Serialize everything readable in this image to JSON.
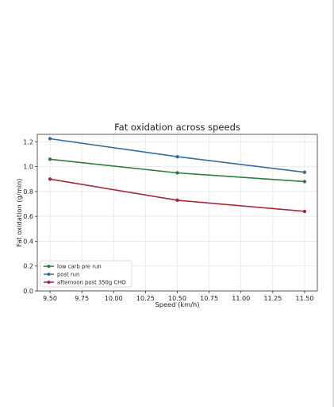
{
  "chart_data": {
    "type": "line",
    "title": "Fat oxidation across speeds",
    "xlabel": "Speed (km/h)",
    "ylabel": "Fat oxidation (g/min)",
    "x": [
      9.5,
      10.5,
      11.5
    ],
    "xlim": [
      9.4,
      11.6
    ],
    "ylim": [
      0.0,
      1.26
    ],
    "xticks": [
      "9.50",
      "9.75",
      "10.00",
      "10.25",
      "10.50",
      "10.75",
      "11.00",
      "11.25",
      "11.50"
    ],
    "yticks": [
      "0.0",
      "0.2",
      "0.4",
      "0.6",
      "0.8",
      "1.0",
      "1.2"
    ],
    "grid": true,
    "legend_position": "lower-left",
    "series": [
      {
        "name": "low carb pre run",
        "color": "#2e7d3e",
        "values": [
          1.06,
          0.95,
          0.88
        ]
      },
      {
        "name": "post run",
        "color": "#336ea0",
        "values": [
          1.225,
          1.08,
          0.955
        ]
      },
      {
        "name": "afternoon post 350g CHO",
        "color": "#a8283a",
        "values": [
          0.9,
          0.73,
          0.64
        ]
      }
    ]
  }
}
